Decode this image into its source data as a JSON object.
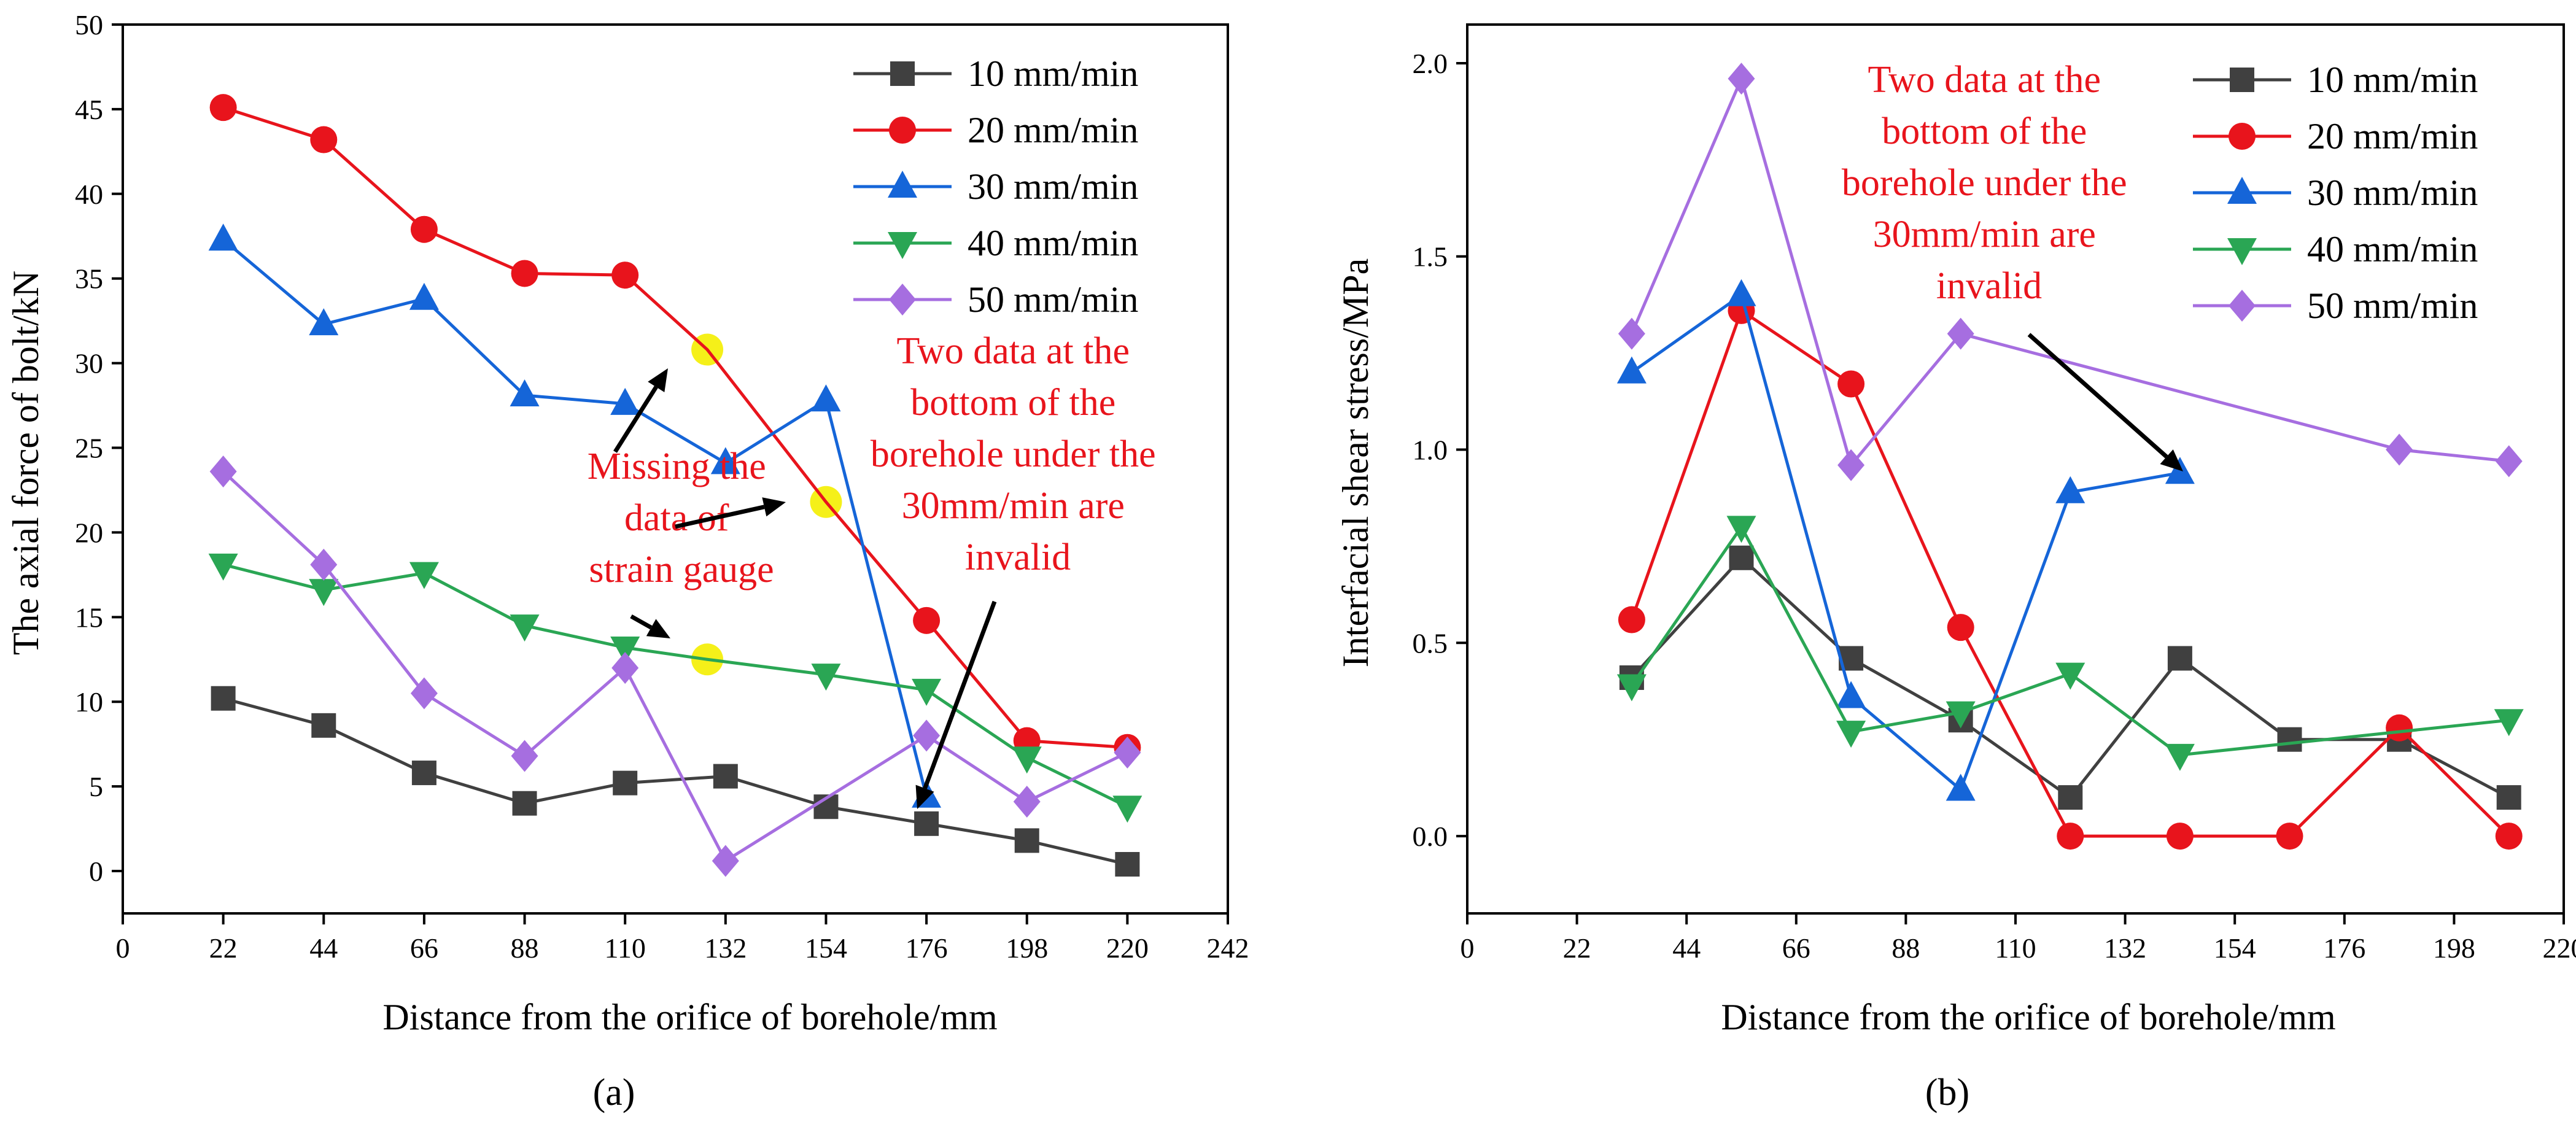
{
  "figure": {
    "panel_a_label": "(a)",
    "panel_b_label": "(b)",
    "annotations": {
      "missing": [
        "Missing the",
        "data of",
        "strain gauge"
      ],
      "invalid_a": [
        "Two data at the",
        "bottom of the",
        "borehole under the",
        "30mm/min are",
        "invalid"
      ],
      "invalid_b": [
        "Two data at the",
        "bottom of the",
        "borehole under the",
        "30mm/min are",
        "invalid"
      ]
    }
  },
  "chart_data": [
    {
      "type": "line",
      "title": "",
      "xlabel": "Distance from the orifice of borehole/mm",
      "ylabel": "The axial force of bolt/kN",
      "xlim": [
        0,
        242
      ],
      "ylim": [
        -2.5,
        50
      ],
      "xticks": [
        0,
        22,
        44,
        66,
        88,
        110,
        132,
        154,
        176,
        198,
        220,
        242
      ],
      "yticks": [
        0,
        5,
        10,
        15,
        20,
        25,
        30,
        35,
        40,
        45,
        50
      ],
      "legend_position": "top-right",
      "series": [
        {
          "name": "10 mm/min",
          "color": "#404040",
          "marker": "square",
          "x": [
            22,
            44,
            66,
            88,
            110,
            132,
            154,
            176,
            198,
            220
          ],
          "y": [
            10.2,
            8.6,
            5.8,
            4.0,
            5.2,
            5.6,
            3.8,
            2.8,
            1.8,
            0.4
          ]
        },
        {
          "name": "20 mm/min",
          "color": "#e8141c",
          "marker": "circle",
          "x": [
            22,
            44,
            66,
            88,
            110,
            176,
            198,
            220
          ],
          "y": [
            45.1,
            43.2,
            37.9,
            35.3,
            35.2,
            14.8,
            7.7,
            7.3
          ],
          "line_x": [
            22,
            44,
            66,
            88,
            110,
            128,
            154,
            176,
            198,
            220
          ],
          "line_y": [
            45.1,
            43.2,
            37.9,
            35.3,
            35.2,
            30.8,
            21.8,
            14.8,
            7.7,
            7.3
          ]
        },
        {
          "name": "30 mm/min",
          "color": "#1565d8",
          "marker": "triangle-up",
          "x": [
            22,
            44,
            66,
            88,
            110,
            132,
            154,
            176
          ],
          "y": [
            37.3,
            32.3,
            33.8,
            28.1,
            27.6,
            24.1,
            27.8,
            4.4
          ]
        },
        {
          "name": "40 mm/min",
          "color": "#2aa654",
          "marker": "triangle-down",
          "x": [
            22,
            44,
            66,
            88,
            110,
            154,
            176,
            198,
            220
          ],
          "y": [
            18.1,
            16.6,
            17.6,
            14.5,
            13.2,
            11.6,
            10.7,
            6.7,
            3.8
          ],
          "line_x": [
            22,
            44,
            66,
            88,
            110,
            128,
            154,
            176,
            198,
            220
          ],
          "line_y": [
            18.1,
            16.6,
            17.6,
            14.5,
            13.2,
            12.5,
            11.6,
            10.7,
            6.7,
            3.8
          ]
        },
        {
          "name": "50 mm/min",
          "color": "#a66ee0",
          "marker": "diamond",
          "x": [
            22,
            44,
            66,
            88,
            110,
            132,
            176,
            198,
            220
          ],
          "y": [
            23.6,
            18.1,
            10.5,
            6.8,
            12.0,
            0.6,
            8.0,
            4.1,
            7.0
          ]
        }
      ],
      "missing_points": [
        {
          "x": 128,
          "y": 30.8
        },
        {
          "x": 154,
          "y": 21.8
        },
        {
          "x": 128,
          "y": 12.5
        }
      ]
    },
    {
      "type": "line",
      "title": "",
      "xlabel": "Distance from the orifice of borehole/mm",
      "ylabel": "Interfacial shear stress/MPa",
      "xlim": [
        0,
        220
      ],
      "ylim": [
        -0.2,
        2.1
      ],
      "xticks": [
        0,
        22,
        44,
        66,
        88,
        110,
        132,
        154,
        176,
        198,
        220
      ],
      "yticks": [
        0.0,
        0.5,
        1.0,
        1.5,
        2.0
      ],
      "ytick_labels": [
        "0.0",
        "0.5",
        "1.0",
        "1.5",
        "2.0"
      ],
      "legend_position": "top-right",
      "series": [
        {
          "name": "10 mm/min",
          "color": "#404040",
          "marker": "square",
          "x": [
            33,
            55,
            77,
            99,
            121,
            143,
            165,
            187,
            209
          ],
          "y": [
            0.41,
            0.72,
            0.46,
            0.3,
            0.1,
            0.46,
            0.25,
            0.25,
            0.1
          ]
        },
        {
          "name": "20 mm/min",
          "color": "#e8141c",
          "marker": "circle",
          "x": [
            33,
            55,
            77,
            99,
            121,
            143,
            165,
            187,
            209
          ],
          "y": [
            0.56,
            1.36,
            1.17,
            0.54,
            0.0,
            0.0,
            0.0,
            0.28,
            0.0
          ]
        },
        {
          "name": "30 mm/min",
          "color": "#1565d8",
          "marker": "triangle-up",
          "x": [
            33,
            55,
            77,
            99,
            121,
            143
          ],
          "y": [
            1.2,
            1.4,
            0.36,
            0.12,
            0.89,
            0.94
          ]
        },
        {
          "name": "40 mm/min",
          "color": "#2aa654",
          "marker": "triangle-down",
          "x": [
            33,
            55,
            77,
            99,
            121,
            143,
            209
          ],
          "y": [
            0.39,
            0.8,
            0.27,
            0.32,
            0.42,
            0.21,
            0.3
          ]
        },
        {
          "name": "50 mm/min",
          "color": "#a66ee0",
          "marker": "diamond",
          "x": [
            33,
            55,
            77,
            99,
            187,
            209
          ],
          "y": [
            1.3,
            1.96,
            0.96,
            1.3,
            1.0,
            0.97
          ]
        }
      ]
    }
  ]
}
